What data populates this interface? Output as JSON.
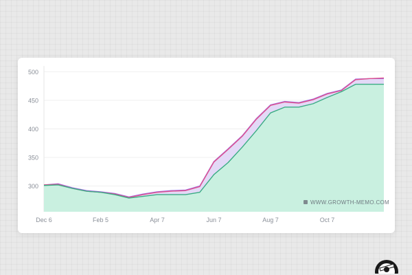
{
  "chart_data": {
    "type": "area",
    "title": "",
    "xlabel": "",
    "ylabel": "",
    "ylim": [
      255,
      510
    ],
    "yticks": [
      300,
      350,
      400,
      450,
      500
    ],
    "grid": true,
    "x_tick_labels": [
      "Dec 6",
      "Feb 5",
      "Apr 7",
      "Jun 7",
      "Aug 7",
      "Oct 7"
    ],
    "x": [
      "Dec 6",
      "Dec 20",
      "Jan 5",
      "Jan 20",
      "Feb 5",
      "Feb 20",
      "Mar 7",
      "Mar 22",
      "Apr 7",
      "Apr 22",
      "May 7",
      "May 22",
      "Jun 7",
      "Jun 22",
      "Jul 7",
      "Jul 22",
      "Aug 7",
      "Aug 22",
      "Sep 7",
      "Sep 22",
      "Oct 7",
      "Oct 22",
      "Nov 7",
      "Nov 22",
      "Dec 5"
    ],
    "series": [
      {
        "color": "#a070e6",
        "values": [
          302,
          304,
          297,
          292,
          290,
          287,
          281,
          286,
          290,
          292,
          293,
          300,
          343,
          365,
          388,
          418,
          442,
          448,
          446,
          452,
          462,
          468,
          487,
          488,
          488
        ]
      },
      {
        "color": "#e0508a",
        "values": [
          302,
          303,
          296,
          291,
          289,
          286,
          280,
          285,
          289,
          291,
          292,
          299,
          342,
          364,
          387,
          417,
          441,
          447,
          445,
          451,
          461,
          467,
          486,
          488,
          489
        ]
      },
      {
        "color": "#3aac84",
        "values": [
          301,
          302,
          296,
          291,
          289,
          285,
          279,
          282,
          285,
          285,
          285,
          289,
          320,
          341,
          368,
          397,
          428,
          438,
          438,
          444,
          455,
          465,
          478,
          478,
          478
        ]
      }
    ],
    "annotations": [
      "WWW.GROWTH-MEMO.COM"
    ]
  },
  "colors": {
    "fill": "#c9f0e0",
    "fill_gap": "#e3d9f7",
    "grid": "#efefef",
    "tick_text": "#8a8f98"
  },
  "watermark_icon": "building-icon"
}
